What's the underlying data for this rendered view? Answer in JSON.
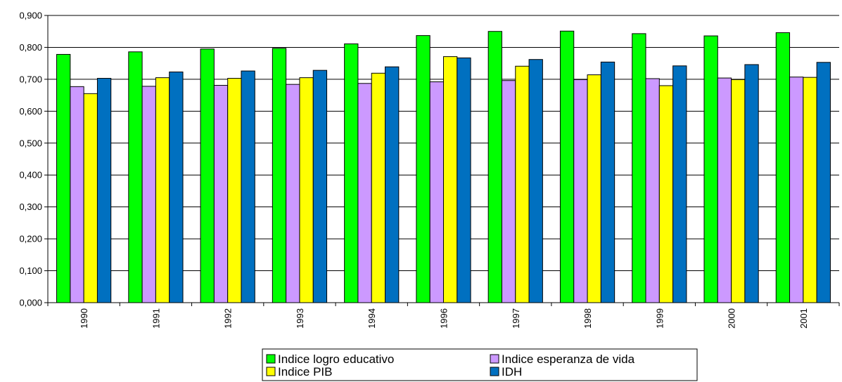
{
  "chart_data": {
    "type": "bar",
    "title": "",
    "xlabel": "",
    "ylabel": "",
    "categories": [
      "1990",
      "1991",
      "1992",
      "1993",
      "1994",
      "1996",
      "1997",
      "1998",
      "1999",
      "2000",
      "2001"
    ],
    "ylim": [
      0,
      0.9
    ],
    "y_ticks": [
      "0,000",
      "0,100",
      "0,200",
      "0,300",
      "0,400",
      "0,500",
      "0,600",
      "0,700",
      "0,800",
      "0,900"
    ],
    "grid": true,
    "legend_position": "bottom",
    "series": [
      {
        "name": "Indice logro educativo",
        "color": "#00ff00",
        "values": [
          0.778,
          0.786,
          0.795,
          0.797,
          0.811,
          0.837,
          0.85,
          0.851,
          0.843,
          0.836,
          0.846
        ]
      },
      {
        "name": "Indice esperanza de vida",
        "color": "#cc99ff",
        "values": [
          0.677,
          0.678,
          0.681,
          0.684,
          0.687,
          0.692,
          0.696,
          0.699,
          0.702,
          0.704,
          0.707
        ]
      },
      {
        "name": "Indice PIB",
        "color": "#ffff00",
        "values": [
          0.655,
          0.705,
          0.703,
          0.705,
          0.719,
          0.771,
          0.741,
          0.714,
          0.68,
          0.699,
          0.706
        ]
      },
      {
        "name": "IDH",
        "color": "#0070c0",
        "values": [
          0.703,
          0.723,
          0.726,
          0.728,
          0.739,
          0.767,
          0.762,
          0.754,
          0.742,
          0.746,
          0.753
        ]
      }
    ]
  }
}
